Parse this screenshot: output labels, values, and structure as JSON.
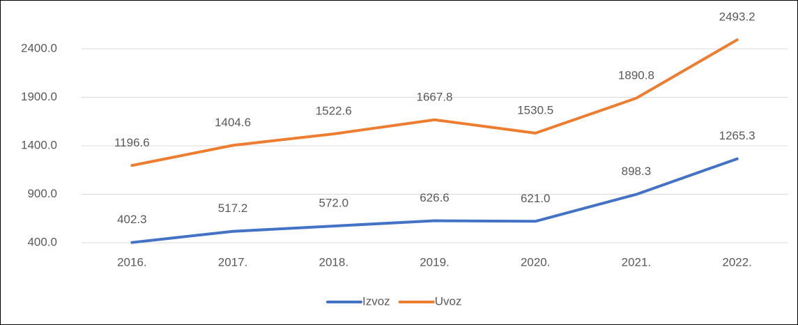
{
  "chart_data": {
    "type": "line",
    "categories": [
      "2016.",
      "2017.",
      "2018.",
      "2019.",
      "2020.",
      "2021.",
      "2022."
    ],
    "series": [
      {
        "name": "Izvoz",
        "color": "#4472c4",
        "values": [
          402.3,
          517.2,
          572.0,
          626.6,
          621.0,
          898.3,
          1265.3
        ],
        "value_labels": [
          "402.3",
          "517.2",
          "572.0",
          "626.6",
          "621.0",
          "898.3",
          "1265.3"
        ]
      },
      {
        "name": "Uvoz",
        "color": "#ed7d31",
        "values": [
          1196.6,
          1404.6,
          1522.6,
          1667.8,
          1530.5,
          1890.8,
          2493.2
        ],
        "value_labels": [
          "1196.6",
          "1404.6",
          "1522.6",
          "1667.8",
          "1530.5",
          "1890.8",
          "2493.2"
        ]
      }
    ],
    "ylim": [
      400,
      2700
    ],
    "yticks": [
      {
        "value": 400,
        "label": "400.0"
      },
      {
        "value": 900,
        "label": "900.0"
      },
      {
        "value": 1400,
        "label": "1400.0"
      },
      {
        "value": 1900,
        "label": "1900.0"
      },
      {
        "value": 2400,
        "label": "2400.0"
      }
    ],
    "grid": true,
    "legend": "bottom"
  }
}
